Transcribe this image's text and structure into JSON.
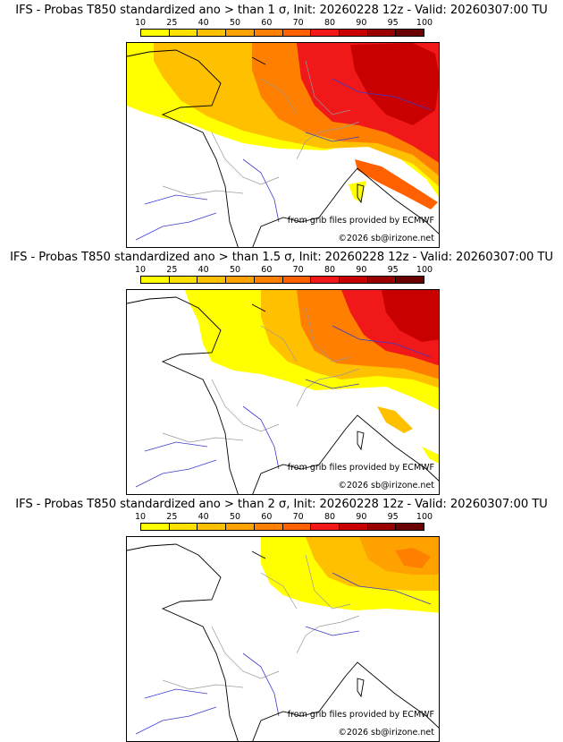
{
  "colorbar": {
    "ticks": [
      "10",
      "25",
      "40",
      "50",
      "60",
      "70",
      "80",
      "90",
      "95",
      "100"
    ],
    "colors": [
      "#ffff00",
      "#ffe100",
      "#ffc000",
      "#ffa200",
      "#ff8000",
      "#ff6000",
      "#f01818",
      "#c80000",
      "#9b0000",
      "#6b0000"
    ]
  },
  "panels": [
    {
      "title": "IFS - Probas T850  standardized ano > than 1 σ, Init: 20260228 12z - Valid: 20260307:00 TU",
      "source": "from grib files provided by ECMWF",
      "copyright": "©2026 sb@irizone.net"
    },
    {
      "title": "IFS - Probas T850  standardized ano > than 1.5 σ, Init: 20260228 12z - Valid: 20260307:00 TU",
      "source": "from grib files provided by ECMWF",
      "copyright": "©2026 sb@irizone.net"
    },
    {
      "title": "IFS - Probas T850  standardized ano > than 2 σ, Init: 20260228 12z - Valid: 20260307:00 TU",
      "source": "from grib files provided by ECMWF",
      "copyright": "©2026 sb@irizone.net"
    }
  ]
}
